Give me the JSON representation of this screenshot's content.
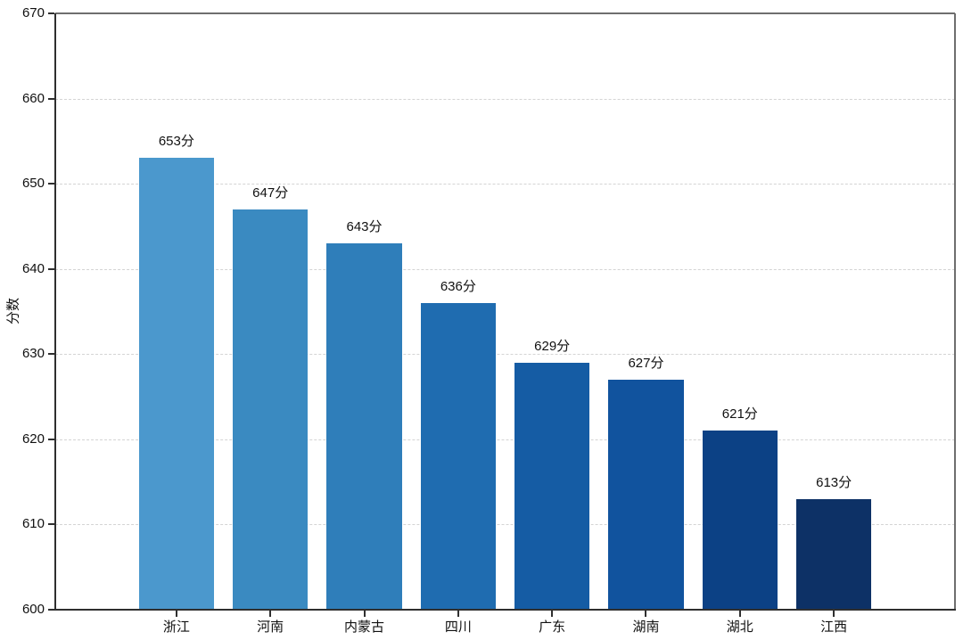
{
  "chart_data": {
    "type": "bar",
    "title": "",
    "categories": [
      "浙江",
      "河南",
      "内蒙古",
      "四川",
      "广东",
      "湖南",
      "湖北",
      "江西"
    ],
    "values": [
      653,
      647,
      643,
      636,
      629,
      627,
      621,
      613
    ],
    "bar_labels": [
      "653分",
      "647分",
      "643分",
      "636分",
      "629分",
      "627分",
      "621分",
      "613分"
    ],
    "bar_colors": [
      "#4b98cd",
      "#3a8ac1",
      "#2f7eba",
      "#1f6cb0",
      "#155ca4",
      "#11539e",
      "#0c4185",
      "#0d3166"
    ],
    "xlabel": "",
    "ylabel": "分数",
    "ylim": [
      600,
      670
    ],
    "yticks": [
      600,
      610,
      620,
      630,
      640,
      650,
      660,
      670
    ],
    "value_suffix": "分",
    "grid": "horizontal-dashed",
    "legend": "none"
  }
}
